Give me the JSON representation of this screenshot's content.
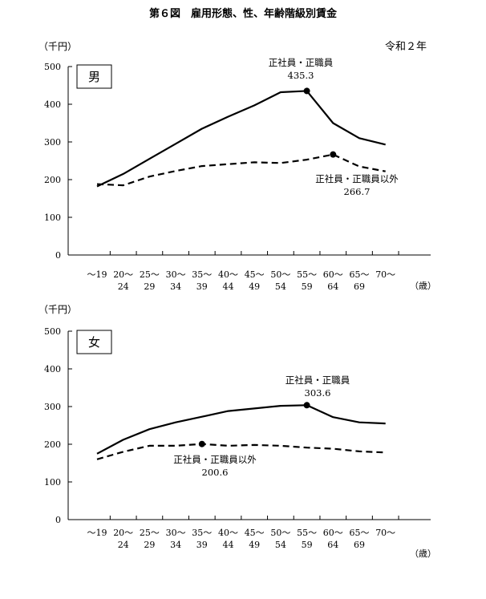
{
  "page": {
    "title": "第６図　雇用形態、性、年齢階級別賃金",
    "era": "令和２年",
    "unit_label": "（千円）",
    "age_unit": "（歳）"
  },
  "chart_data": [
    {
      "type": "line",
      "panel_label": "男",
      "ylabel": "（千円）",
      "xlabel": "（歳）",
      "ylim": [
        0,
        500
      ],
      "yticks": [
        0,
        100,
        200,
        300,
        400,
        500
      ],
      "categories": [
        [
          "～19",
          ""
        ],
        [
          "20～",
          "24"
        ],
        [
          "25～",
          "29"
        ],
        [
          "30～",
          "34"
        ],
        [
          "35～",
          "39"
        ],
        [
          "40～",
          "44"
        ],
        [
          "45～",
          "49"
        ],
        [
          "50～",
          "54"
        ],
        [
          "55～",
          "59"
        ],
        [
          "60～",
          "64"
        ],
        [
          "65～",
          "69"
        ],
        [
          "70～",
          ""
        ]
      ],
      "series": [
        {
          "name": "正社員・正職員",
          "style": "solid",
          "values": [
            182,
            215,
            255,
            295,
            335,
            367,
            397,
            432,
            435.3,
            350,
            310,
            293
          ],
          "peak_index": 8,
          "peak_label": "435.3"
        },
        {
          "name": "正社員・正職員以外",
          "style": "dashed",
          "values": [
            188,
            185,
            208,
            223,
            236,
            241,
            246,
            244,
            253,
            266.7,
            235,
            222
          ],
          "peak_index": 9,
          "peak_label": "266.7"
        }
      ],
      "grid": false
    },
    {
      "type": "line",
      "panel_label": "女",
      "ylabel": "（千円）",
      "xlabel": "（歳）",
      "ylim": [
        0,
        500
      ],
      "yticks": [
        0,
        100,
        200,
        300,
        400,
        500
      ],
      "categories": [
        [
          "～19",
          ""
        ],
        [
          "20～",
          "24"
        ],
        [
          "25～",
          "29"
        ],
        [
          "30～",
          "34"
        ],
        [
          "35～",
          "39"
        ],
        [
          "40～",
          "44"
        ],
        [
          "45～",
          "49"
        ],
        [
          "50～",
          "54"
        ],
        [
          "55～",
          "59"
        ],
        [
          "60～",
          "64"
        ],
        [
          "65～",
          "69"
        ],
        [
          "70～",
          ""
        ]
      ],
      "series": [
        {
          "name": "正社員・正職員",
          "style": "solid",
          "values": [
            175,
            212,
            240,
            258,
            273,
            288,
            295,
            302,
            303.6,
            272,
            258,
            255
          ],
          "peak_index": 8,
          "peak_label": "303.6"
        },
        {
          "name": "正社員・正職員以外",
          "style": "dashed",
          "values": [
            160,
            180,
            196,
            196,
            200.6,
            196,
            198,
            196,
            191,
            188,
            181,
            178
          ],
          "peak_index": 4,
          "peak_label": "200.6"
        }
      ],
      "grid": false
    }
  ]
}
